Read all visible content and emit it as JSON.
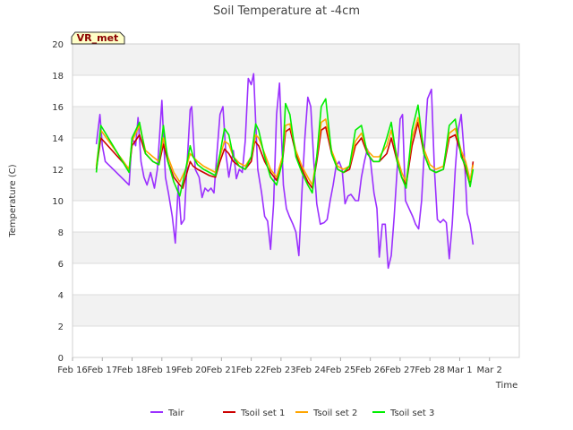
{
  "chart_data": {
    "type": "line",
    "title": "Soil Temperature at -4cm",
    "xlabel": "Time",
    "ylabel": "Temperature (C)",
    "badge": "VR_met",
    "xlim": [
      0,
      15
    ],
    "ylim": [
      0,
      20
    ],
    "x_tick_labels": [
      "Feb 16",
      "Feb 17",
      "Feb 18",
      "Feb 19",
      "Feb 20",
      "Feb 21",
      "Feb 22",
      "Feb 23",
      "Feb 24",
      "Feb 25",
      "Feb 26",
      "Feb 27",
      "Feb 28",
      "Mar 1",
      "Mar 2"
    ],
    "y_ticks": [
      0,
      2,
      4,
      6,
      8,
      10,
      12,
      14,
      16,
      18,
      20
    ],
    "grid": true,
    "legend_position": "bottom",
    "series": [
      {
        "name": "Tair",
        "color": "#9b30ff",
        "x": [
          0.8,
          0.92,
          1.0,
          1.1,
          1.9,
          2.0,
          2.12,
          2.2,
          2.3,
          2.4,
          2.5,
          2.62,
          2.75,
          2.85,
          3.0,
          3.12,
          3.22,
          3.35,
          3.45,
          3.55,
          3.65,
          3.75,
          3.85,
          3.95,
          4.0,
          4.12,
          4.25,
          4.35,
          4.45,
          4.55,
          4.65,
          4.75,
          4.85,
          4.95,
          5.05,
          5.15,
          5.25,
          5.4,
          5.5,
          5.6,
          5.7,
          5.8,
          5.9,
          6.0,
          6.08,
          6.15,
          6.22,
          6.35,
          6.45,
          6.55,
          6.65,
          6.75,
          6.85,
          6.95,
          7.08,
          7.18,
          7.28,
          7.4,
          7.5,
          7.6,
          7.7,
          7.8,
          7.9,
          8.0,
          8.1,
          8.2,
          8.32,
          8.45,
          8.55,
          8.65,
          8.75,
          8.85,
          8.95,
          9.05,
          9.15,
          9.25,
          9.35,
          9.5,
          9.6,
          9.7,
          9.8,
          9.9,
          10.0,
          10.12,
          10.22,
          10.3,
          10.4,
          10.5,
          10.6,
          10.7,
          10.8,
          10.9,
          11.0,
          11.08,
          11.18,
          11.3,
          11.42,
          11.52,
          11.62,
          11.72,
          11.82,
          11.92,
          12.05,
          12.15,
          12.25,
          12.35,
          12.45,
          12.55,
          12.65,
          12.75,
          12.85,
          12.95,
          13.05,
          13.15,
          13.25,
          13.35,
          13.45
        ],
        "y": [
          13.6,
          15.5,
          13.5,
          12.5,
          11.0,
          14.0,
          13.5,
          15.3,
          12.5,
          11.5,
          11.0,
          11.8,
          10.8,
          12.0,
          16.4,
          11.5,
          10.5,
          9.0,
          7.3,
          11.0,
          8.5,
          8.8,
          12.5,
          15.8,
          16.0,
          12.0,
          11.5,
          10.2,
          10.8,
          10.6,
          10.8,
          10.5,
          13.0,
          15.5,
          16.0,
          13.0,
          11.5,
          13.2,
          11.4,
          12.0,
          11.8,
          13.8,
          17.8,
          17.4,
          18.1,
          15.0,
          12.0,
          10.5,
          9.0,
          8.7,
          6.9,
          9.8,
          15.5,
          17.5,
          11.0,
          9.5,
          9.0,
          8.5,
          8.0,
          6.5,
          10.5,
          14.0,
          16.6,
          16.0,
          12.5,
          9.8,
          8.5,
          8.6,
          8.8,
          10.0,
          11.0,
          12.2,
          12.5,
          12.0,
          9.8,
          10.3,
          10.4,
          10.0,
          10.0,
          11.5,
          12.5,
          13.3,
          12.6,
          10.5,
          9.5,
          6.4,
          8.5,
          8.5,
          5.7,
          6.5,
          9.0,
          12.0,
          15.2,
          15.5,
          10.0,
          9.5,
          9.0,
          8.5,
          8.2,
          10.0,
          13.5,
          16.5,
          17.1,
          12.0,
          8.8,
          8.6,
          8.8,
          8.6,
          6.3,
          8.5,
          12.0,
          14.5,
          15.5,
          13.0,
          9.2,
          8.5,
          7.2
        ]
      },
      {
        "name": "Tsoil set 1",
        "color": "#cc0000",
        "x": [
          0.8,
          0.95,
          1.9,
          2.0,
          2.25,
          2.45,
          2.7,
          2.9,
          3.05,
          3.2,
          3.4,
          3.6,
          3.7,
          3.8,
          3.95,
          4.05,
          4.2,
          4.4,
          4.6,
          4.8,
          4.95,
          5.1,
          5.25,
          5.4,
          5.6,
          5.8,
          6.0,
          6.12,
          6.25,
          6.45,
          6.65,
          6.85,
          7.05,
          7.15,
          7.3,
          7.5,
          7.7,
          7.9,
          8.05,
          8.2,
          8.35,
          8.5,
          8.7,
          8.9,
          9.1,
          9.3,
          9.5,
          9.7,
          9.9,
          10.1,
          10.3,
          10.55,
          10.7,
          10.9,
          11.05,
          11.2,
          11.4,
          11.6,
          11.8,
          12.0,
          12.2,
          12.45,
          12.65,
          12.85,
          13.05,
          13.2,
          13.35,
          13.45
        ],
        "y": [
          12.0,
          14.0,
          12.0,
          13.5,
          14.2,
          13.0,
          12.5,
          12.3,
          13.6,
          12.5,
          11.5,
          11.0,
          10.8,
          11.5,
          12.5,
          12.2,
          12.0,
          11.8,
          11.6,
          11.5,
          12.5,
          13.3,
          13.0,
          12.5,
          12.2,
          12.0,
          12.5,
          13.8,
          13.5,
          12.5,
          11.8,
          11.3,
          12.5,
          14.4,
          14.6,
          13.0,
          12.0,
          11.2,
          10.8,
          12.5,
          14.5,
          14.7,
          13.0,
          12.0,
          11.8,
          12.0,
          13.5,
          14.0,
          13.0,
          12.5,
          12.5,
          13.0,
          14.0,
          12.5,
          11.5,
          11.0,
          13.5,
          15.0,
          13.0,
          12.0,
          11.8,
          12.0,
          14.0,
          14.2,
          13.0,
          12.0,
          11.0,
          12.5
        ]
      },
      {
        "name": "Tsoil set 2",
        "color": "#ffa500",
        "x": [
          0.8,
          0.95,
          1.9,
          2.0,
          2.25,
          2.45,
          2.7,
          2.9,
          3.05,
          3.2,
          3.4,
          3.6,
          3.8,
          3.95,
          4.05,
          4.2,
          4.4,
          4.6,
          4.8,
          4.95,
          5.1,
          5.25,
          5.4,
          5.6,
          5.8,
          6.0,
          6.15,
          6.25,
          6.45,
          6.65,
          6.85,
          7.05,
          7.15,
          7.3,
          7.5,
          7.7,
          7.9,
          8.05,
          8.2,
          8.35,
          8.5,
          8.7,
          8.9,
          9.1,
          9.3,
          9.5,
          9.7,
          9.9,
          10.1,
          10.3,
          10.55,
          10.7,
          10.9,
          11.05,
          11.2,
          11.4,
          11.6,
          11.8,
          12.0,
          12.2,
          12.45,
          12.65,
          12.85,
          13.05,
          13.2,
          13.35,
          13.45
        ],
        "y": [
          12.2,
          14.5,
          12.0,
          13.8,
          14.8,
          13.2,
          12.8,
          12.5,
          14.0,
          12.8,
          11.8,
          11.2,
          12.0,
          13.0,
          12.8,
          12.5,
          12.2,
          12.0,
          11.8,
          12.8,
          13.8,
          13.6,
          12.8,
          12.4,
          12.2,
          12.8,
          14.2,
          14.0,
          13.0,
          12.0,
          11.5,
          12.8,
          14.8,
          14.9,
          13.2,
          12.2,
          11.5,
          11.0,
          12.8,
          15.0,
          15.2,
          13.2,
          12.2,
          12.0,
          12.2,
          13.8,
          14.3,
          13.2,
          12.8,
          12.8,
          13.5,
          14.5,
          12.8,
          11.8,
          11.2,
          14.0,
          15.3,
          13.3,
          12.3,
          12.0,
          12.2,
          14.3,
          14.6,
          13.2,
          12.5,
          11.3,
          12.3
        ]
      },
      {
        "name": "Tsoil set 3",
        "color": "#00ee00",
        "x": [
          0.8,
          0.95,
          1.9,
          2.0,
          2.25,
          2.45,
          2.7,
          2.9,
          3.05,
          3.2,
          3.4,
          3.6,
          3.8,
          3.95,
          4.05,
          4.2,
          4.4,
          4.6,
          4.8,
          4.95,
          5.1,
          5.25,
          5.4,
          5.6,
          5.8,
          6.0,
          6.15,
          6.25,
          6.45,
          6.65,
          6.85,
          7.05,
          7.15,
          7.3,
          7.5,
          7.7,
          7.9,
          8.05,
          8.2,
          8.35,
          8.5,
          8.7,
          8.9,
          9.1,
          9.3,
          9.5,
          9.7,
          9.9,
          10.1,
          10.3,
          10.55,
          10.7,
          10.9,
          11.05,
          11.2,
          11.4,
          11.6,
          11.8,
          12.0,
          12.2,
          12.45,
          12.65,
          12.85,
          13.05,
          13.2,
          13.35,
          13.45
        ],
        "y": [
          11.8,
          14.8,
          11.8,
          14.0,
          15.0,
          13.0,
          12.5,
          12.3,
          14.8,
          12.5,
          11.2,
          10.3,
          12.0,
          13.5,
          12.8,
          12.3,
          12.0,
          11.8,
          11.6,
          13.0,
          14.6,
          14.2,
          12.8,
          12.2,
          12.0,
          12.8,
          14.9,
          14.5,
          12.8,
          11.5,
          11.0,
          12.5,
          16.2,
          15.5,
          12.8,
          11.8,
          11.0,
          10.5,
          12.8,
          16.0,
          16.5,
          13.0,
          12.0,
          11.8,
          12.2,
          14.5,
          14.8,
          13.0,
          12.5,
          12.5,
          14.0,
          15.0,
          12.5,
          11.5,
          10.8,
          14.5,
          16.1,
          13.0,
          12.0,
          11.8,
          12.0,
          14.8,
          15.2,
          12.8,
          12.2,
          10.9,
          12.0
        ]
      }
    ]
  }
}
